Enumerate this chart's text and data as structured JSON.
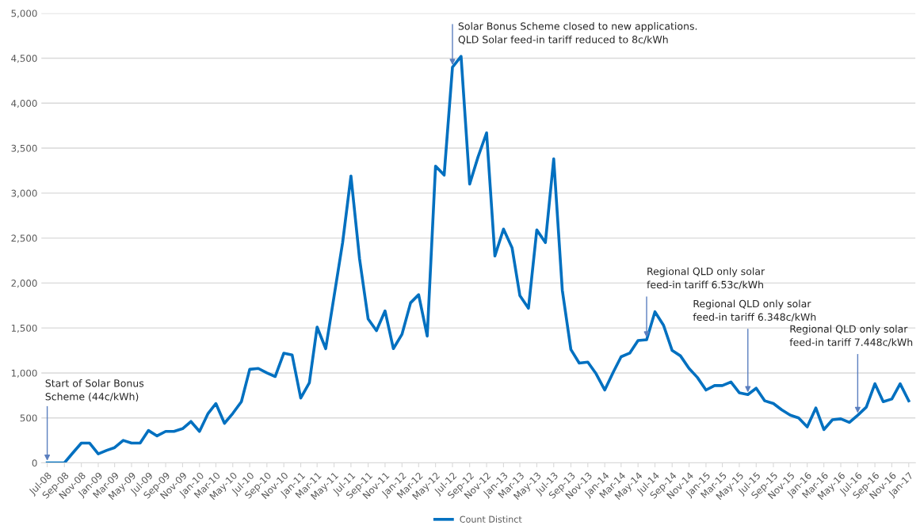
{
  "chart_data": {
    "type": "line",
    "x": [
      "2008-07",
      "2008-08",
      "2008-09",
      "2008-10",
      "2008-11",
      "2008-12",
      "2009-01",
      "2009-02",
      "2009-03",
      "2009-04",
      "2009-05",
      "2009-06",
      "2009-07",
      "2009-08",
      "2009-09",
      "2009-10",
      "2009-11",
      "2009-12",
      "2010-01",
      "2010-02",
      "2010-03",
      "2010-04",
      "2010-05",
      "2010-06",
      "2010-07",
      "2010-08",
      "2010-09",
      "2010-10",
      "2010-11",
      "2010-12",
      "2011-01",
      "2011-02",
      "2011-03",
      "2011-04",
      "2011-05",
      "2011-06",
      "2011-07",
      "2011-08",
      "2011-09",
      "2011-10",
      "2011-11",
      "2011-12",
      "2012-01",
      "2012-02",
      "2012-03",
      "2012-04",
      "2012-05",
      "2012-06",
      "2012-07",
      "2012-08",
      "2012-09",
      "2012-10",
      "2012-11",
      "2012-12",
      "2013-01",
      "2013-02",
      "2013-03",
      "2013-04",
      "2013-05",
      "2013-06",
      "2013-07",
      "2013-08",
      "2013-09",
      "2013-10",
      "2013-11",
      "2013-12",
      "2014-01",
      "2014-02",
      "2014-03",
      "2014-04",
      "2014-05",
      "2014-06",
      "2014-07",
      "2014-08",
      "2014-09",
      "2014-10",
      "2014-11",
      "2014-12",
      "2015-01",
      "2015-02",
      "2015-03",
      "2015-04",
      "2015-05",
      "2015-06",
      "2015-07",
      "2015-08",
      "2015-09",
      "2015-10",
      "2015-11",
      "2015-12",
      "2016-01",
      "2016-02",
      "2016-03",
      "2016-04",
      "2016-05",
      "2016-06",
      "2016-07",
      "2016-08",
      "2016-09",
      "2016-10",
      "2016-11",
      "2016-12",
      "2017-01"
    ],
    "series": [
      {
        "name": "Count Distinct",
        "color": "#0070c0",
        "values": [
          0,
          0,
          0,
          110,
          220,
          220,
          100,
          140,
          170,
          250,
          220,
          220,
          360,
          300,
          350,
          350,
          380,
          460,
          350,
          550,
          660,
          440,
          550,
          680,
          1040,
          1050,
          1000,
          960,
          1220,
          1200,
          720,
          890,
          1510,
          1270,
          1850,
          2450,
          3190,
          2270,
          1600,
          1470,
          1690,
          1270,
          1430,
          1780,
          1870,
          1410,
          3300,
          3200,
          4400,
          4520,
          3100,
          3400,
          3670,
          2300,
          2600,
          2390,
          1860,
          1720,
          2590,
          2450,
          3380,
          1920,
          1260,
          1110,
          1120,
          990,
          810,
          1010,
          1180,
          1220,
          1360,
          1370,
          1680,
          1530,
          1250,
          1190,
          1050,
          950,
          810,
          860,
          860,
          900,
          780,
          760,
          830,
          690,
          660,
          590,
          530,
          500,
          400,
          610,
          370,
          480,
          490,
          450,
          530,
          620,
          880,
          680,
          710,
          880,
          690
        ]
      }
    ],
    "ylim": [
      0,
      5000
    ],
    "yticks": [
      {
        "value": 0,
        "label": "0"
      },
      {
        "value": 500,
        "label": "500"
      },
      {
        "value": 1000,
        "label": "1,000"
      },
      {
        "value": 1500,
        "label": "1,500"
      },
      {
        "value": 2000,
        "label": "2,000"
      },
      {
        "value": 2500,
        "label": "2,500"
      },
      {
        "value": 3000,
        "label": "3,000"
      },
      {
        "value": 3500,
        "label": "3,500"
      },
      {
        "value": 4000,
        "label": "4,000"
      },
      {
        "value": 4500,
        "label": "4,500"
      },
      {
        "value": 5000,
        "label": "5,000"
      }
    ],
    "xlim": [
      "2008-06-10",
      "2017-01-25"
    ],
    "xticks": [
      {
        "value": "2008-07",
        "label": "Jul-08"
      },
      {
        "value": "2008-09",
        "label": "Sep-08"
      },
      {
        "value": "2008-11",
        "label": "Nov-08"
      },
      {
        "value": "2009-01",
        "label": "Jan-09"
      },
      {
        "value": "2009-03",
        "label": "Mar-09"
      },
      {
        "value": "2009-05",
        "label": "May-09"
      },
      {
        "value": "2009-07",
        "label": "Jul-09"
      },
      {
        "value": "2009-09",
        "label": "Sep-09"
      },
      {
        "value": "2009-11",
        "label": "Nov-09"
      },
      {
        "value": "2010-01",
        "label": "Jan-10"
      },
      {
        "value": "2010-03",
        "label": "Mar-10"
      },
      {
        "value": "2010-05",
        "label": "May-10"
      },
      {
        "value": "2010-07",
        "label": "Jul-10"
      },
      {
        "value": "2010-09",
        "label": "Sep-10"
      },
      {
        "value": "2010-11",
        "label": "Nov-10"
      },
      {
        "value": "2011-01",
        "label": "Jan-11"
      },
      {
        "value": "2011-03",
        "label": "Mar-11"
      },
      {
        "value": "2011-05",
        "label": "May-11"
      },
      {
        "value": "2011-07",
        "label": "Jul-11"
      },
      {
        "value": "2011-09",
        "label": "Sep-11"
      },
      {
        "value": "2011-11",
        "label": "Nov-11"
      },
      {
        "value": "2012-01",
        "label": "Jan-12"
      },
      {
        "value": "2012-03",
        "label": "Mar-12"
      },
      {
        "value": "2012-05",
        "label": "May-12"
      },
      {
        "value": "2012-07",
        "label": "Jul-12"
      },
      {
        "value": "2012-09",
        "label": "Sep-12"
      },
      {
        "value": "2012-11",
        "label": "Nov-12"
      },
      {
        "value": "2013-01",
        "label": "Jan-13"
      },
      {
        "value": "2013-03",
        "label": "Mar-13"
      },
      {
        "value": "2013-05",
        "label": "May-13"
      },
      {
        "value": "2013-07",
        "label": "Jul-13"
      },
      {
        "value": "2013-09",
        "label": "Sep-13"
      },
      {
        "value": "2013-11",
        "label": "Nov-13"
      },
      {
        "value": "2014-01",
        "label": "Jan-14"
      },
      {
        "value": "2014-03",
        "label": "Mar-14"
      },
      {
        "value": "2014-05",
        "label": "May-14"
      },
      {
        "value": "2014-07",
        "label": "Jul-14"
      },
      {
        "value": "2014-09",
        "label": "Sep-14"
      },
      {
        "value": "2014-11",
        "label": "Nov-14"
      },
      {
        "value": "2015-01",
        "label": "Jan-15"
      },
      {
        "value": "2015-03",
        "label": "Mar-15"
      },
      {
        "value": "2015-05",
        "label": "May-15"
      },
      {
        "value": "2015-07",
        "label": "Jul-15"
      },
      {
        "value": "2015-09",
        "label": "Sep-15"
      },
      {
        "value": "2015-11",
        "label": "Nov-15"
      },
      {
        "value": "2016-01",
        "label": "Jan-16"
      },
      {
        "value": "2016-03",
        "label": "Mar-16"
      },
      {
        "value": "2016-05",
        "label": "May-16"
      },
      {
        "value": "2016-07",
        "label": "Jul-16"
      },
      {
        "value": "2016-09",
        "label": "Sep-16"
      },
      {
        "value": "2016-11",
        "label": "Nov-16"
      },
      {
        "value": "2017-01",
        "label": "Jan-17"
      }
    ],
    "annotations": [
      {
        "text": "Start of Solar Bonus\nScheme (44c/kWh)",
        "x": "2008-07",
        "y": 0
      },
      {
        "text": "Solar Bonus Scheme closed to new applications.\nQLD Solar feed-in tariff reduced to 8c/kWh",
        "x": "2012-07",
        "y": 4400
      },
      {
        "text": "Regional QLD only solar\nfeed-in tariff 6.53c/kWh",
        "x": "2014-06",
        "y": 1370
      },
      {
        "text": "Regional QLD only solar\nfeed-in tariff 6.348c/kWh",
        "x": "2015-06",
        "y": 760
      },
      {
        "text": "Regional QLD only solar\nfeed-in tariff 7.448c/kWh",
        "x": "2016-07",
        "y": 530
      }
    ],
    "grid": "y",
    "legend": "bottom",
    "marker": "none",
    "line_style": "solid"
  }
}
